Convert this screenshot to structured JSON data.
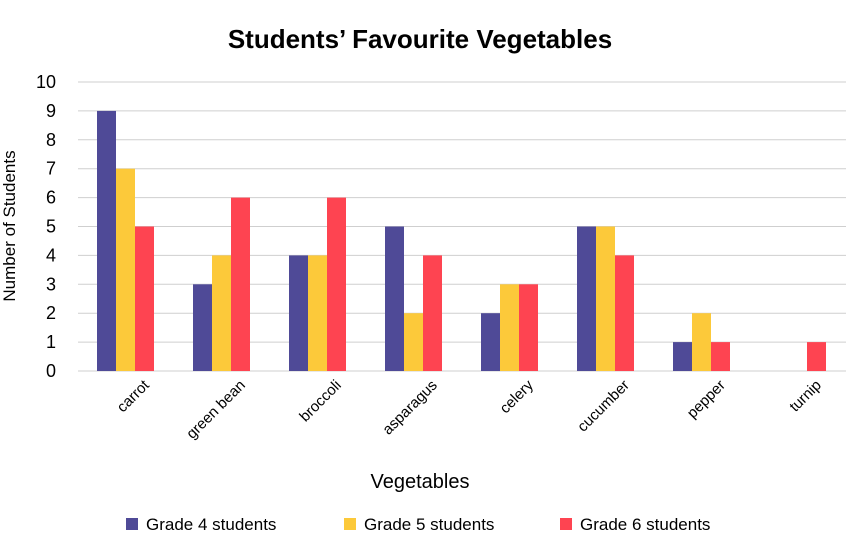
{
  "chart_data": {
    "type": "bar",
    "title": "Students’ Favourite Vegetables",
    "xlabel": "Vegetables",
    "ylabel": "Number of Students",
    "ylim": [
      0,
      10
    ],
    "yticks": [
      "0",
      "1",
      "2",
      "3",
      "4",
      "5",
      "6",
      "7",
      "8",
      "9",
      "10"
    ],
    "grid": true,
    "legend_position": "bottom",
    "categories": [
      "carrot",
      "green bean",
      "broccoli",
      "asparagus",
      "celery",
      "cucumber",
      "pepper",
      "turnip"
    ],
    "series": [
      {
        "name": "Grade 4 students",
        "color": "#4f4a97",
        "values": [
          9,
          3,
          4,
          5,
          2,
          5,
          1,
          0
        ]
      },
      {
        "name": "Grade 5 students",
        "color": "#fcc93a",
        "values": [
          7,
          4,
          4,
          2,
          3,
          5,
          2,
          0
        ]
      },
      {
        "name": "Grade 6 students",
        "color": "#fe4451",
        "values": [
          5,
          6,
          6,
          4,
          3,
          4,
          1,
          1
        ]
      }
    ]
  }
}
